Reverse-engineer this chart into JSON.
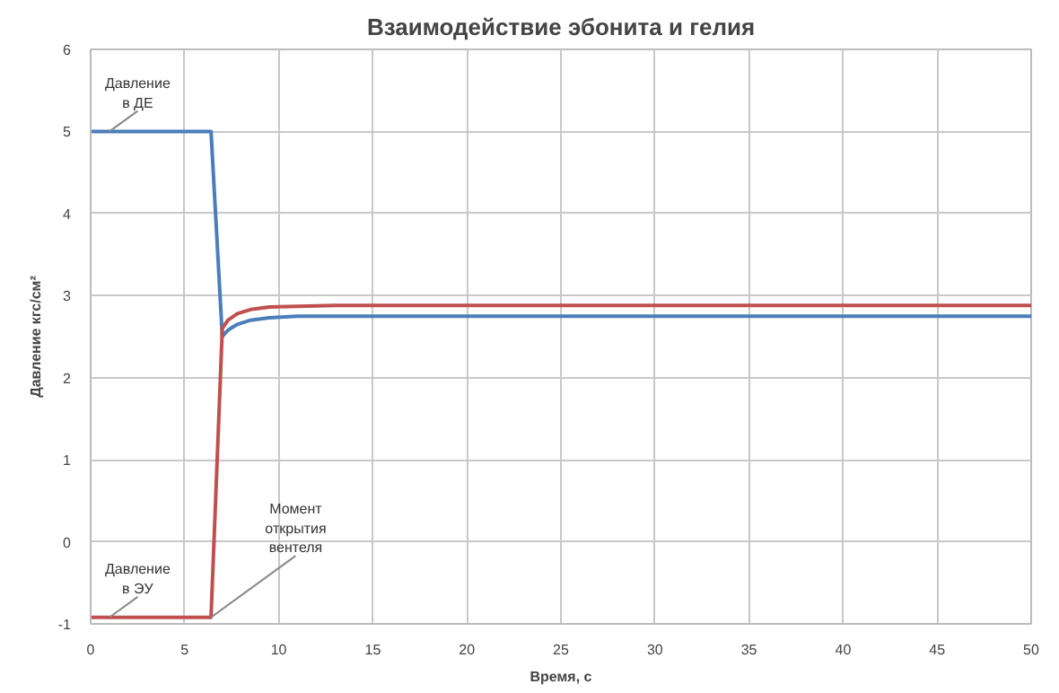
{
  "chart_data": {
    "type": "line",
    "title": "Взаимодействие эбонита и гелия",
    "xlabel": "Время, с",
    "ylabel": "Давление кгс/см²",
    "xlim": [
      0,
      50
    ],
    "ylim": [
      -1,
      6
    ],
    "xticks": [
      0,
      5,
      10,
      15,
      20,
      25,
      30,
      35,
      40,
      45,
      50
    ],
    "yticks": [
      -1,
      0,
      1,
      2,
      3,
      4,
      5,
      6
    ],
    "grid": true,
    "marker": "none",
    "line_style": "solid",
    "series": [
      {
        "color": "#4a7ebb",
        "x": [
          0,
          6.4,
          7.0,
          7.3,
          7.8,
          8.5,
          9.5,
          11,
          13,
          20,
          30,
          40,
          50
        ],
        "values": [
          5.0,
          5.0,
          2.5,
          2.58,
          2.65,
          2.7,
          2.73,
          2.75,
          2.75,
          2.75,
          2.75,
          2.75,
          2.75
        ]
      },
      {
        "color": "#c0504d",
        "x": [
          0,
          6.4,
          7.0,
          7.3,
          7.8,
          8.5,
          9.5,
          11,
          13,
          20,
          30,
          40,
          50
        ],
        "values": [
          -0.92,
          -0.92,
          2.6,
          2.7,
          2.78,
          2.83,
          2.86,
          2.87,
          2.88,
          2.88,
          2.88,
          2.88,
          2.88
        ]
      }
    ],
    "annotations": [
      "Давление\nв ДЕ",
      "Давление\nв ЭУ",
      {
        "text": "Момент\nоткрытия\nвентеля",
        "x": 6.4,
        "y": -0.92
      }
    ]
  }
}
